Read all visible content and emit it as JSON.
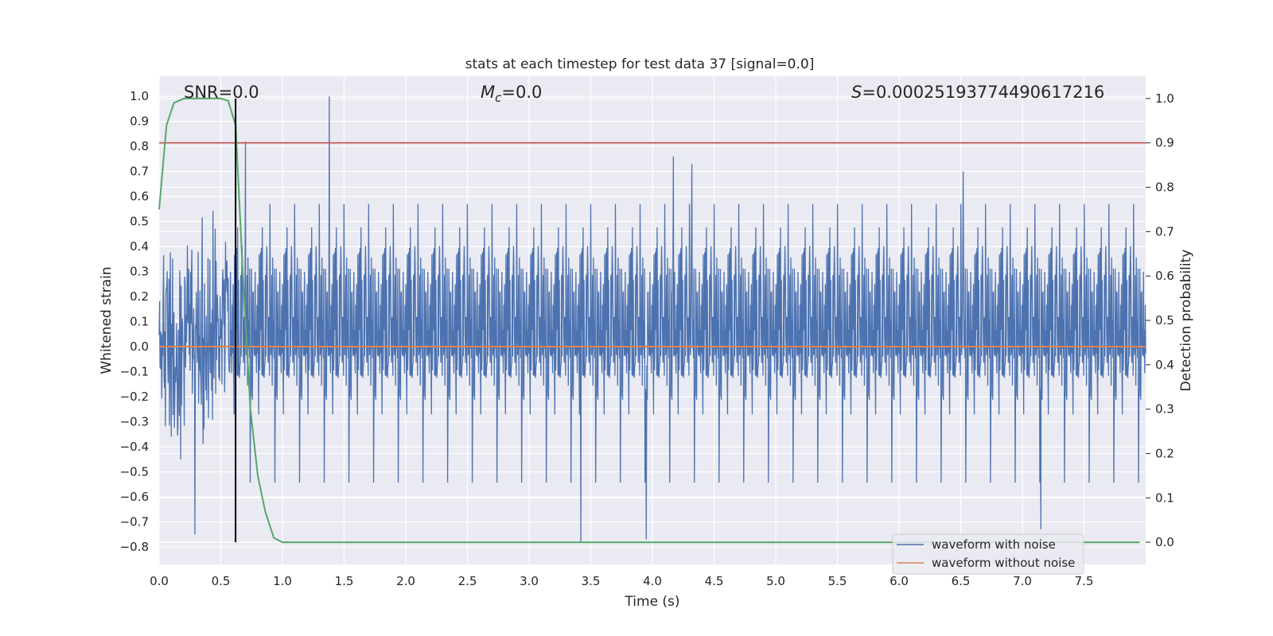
{
  "chart_data": {
    "type": "line",
    "title": "stats at each timestep for test data 37 [signal=0.0]",
    "xlabel": "Time (s)",
    "ylabel": "Whitened strain",
    "y2label": "Detection probability",
    "xlim": [
      0.0,
      8.0
    ],
    "ylim": [
      -0.87,
      1.08
    ],
    "y2lim": [
      -0.05,
      1.05
    ],
    "xticks": [
      "0.0",
      "0.5",
      "1.0",
      "1.5",
      "2.0",
      "2.5",
      "3.0",
      "3.5",
      "4.0",
      "4.5",
      "5.0",
      "5.5",
      "6.0",
      "6.5",
      "7.0",
      "7.5"
    ],
    "yticks": [
      "-0.8",
      "-0.7",
      "-0.6",
      "-0.5",
      "-0.4",
      "-0.3",
      "-0.2",
      "-0.1",
      "0.0",
      "0.1",
      "0.2",
      "0.3",
      "0.4",
      "0.5",
      "0.6",
      "0.7",
      "0.8",
      "0.9",
      "1.0"
    ],
    "y2ticks": [
      "0.0",
      "0.1",
      "0.2",
      "0.3",
      "0.4",
      "0.5",
      "0.6",
      "0.7",
      "0.8",
      "0.9",
      "1.0"
    ],
    "grid": true,
    "legend_position": "bottom-right",
    "annotations": {
      "snr": "SNR=0.0",
      "mc_symbol": "M",
      "mc_sub": "c",
      "mc_value": "=0.0",
      "s_symbol": "S",
      "s_value": "=0.00025193774490617216"
    },
    "threshold_probability": 0.9,
    "marker_time": 0.62,
    "series": [
      {
        "name": "waveform with noise",
        "color": "#4c72b0",
        "axis": "left",
        "kind": "noise",
        "envelope_typical": [
          -0.45,
          0.45
        ],
        "envelope_extremes": [
          -0.78,
          1.0
        ],
        "peaks": [
          [
            0.29,
            -0.75
          ],
          [
            0.7,
            0.82
          ],
          [
            1.38,
            1.0
          ],
          [
            3.42,
            -0.78
          ],
          [
            3.95,
            -0.77
          ],
          [
            4.17,
            0.76
          ],
          [
            4.32,
            0.73
          ],
          [
            6.52,
            0.7
          ],
          [
            7.15,
            -0.73
          ]
        ]
      },
      {
        "name": "waveform without noise",
        "color": "#dd8452",
        "axis": "left",
        "x": [
          0.0,
          8.0
        ],
        "y": [
          0.0,
          0.0
        ]
      },
      {
        "name": "Detection probability",
        "color": "#55a868",
        "axis": "right",
        "x": [
          0.0,
          0.06,
          0.12,
          0.2,
          0.3,
          0.4,
          0.5,
          0.56,
          0.62,
          0.68,
          0.74,
          0.8,
          0.86,
          0.93,
          1.0,
          1.5,
          2.0,
          3.0,
          4.0,
          5.0,
          6.0,
          7.0,
          7.95
        ],
        "y": [
          0.75,
          0.94,
          0.99,
          1.0,
          1.0,
          1.0,
          1.0,
          0.995,
          0.94,
          0.6,
          0.3,
          0.15,
          0.07,
          0.01,
          0.0,
          0.0,
          0.0,
          0.0,
          0.0,
          0.0,
          0.0,
          0.0,
          0.0
        ]
      }
    ],
    "colors": {
      "plot_background": "#eaeaf2",
      "grid": "#ffffff",
      "threshold": "#c44e52",
      "marker": "#000000"
    }
  }
}
